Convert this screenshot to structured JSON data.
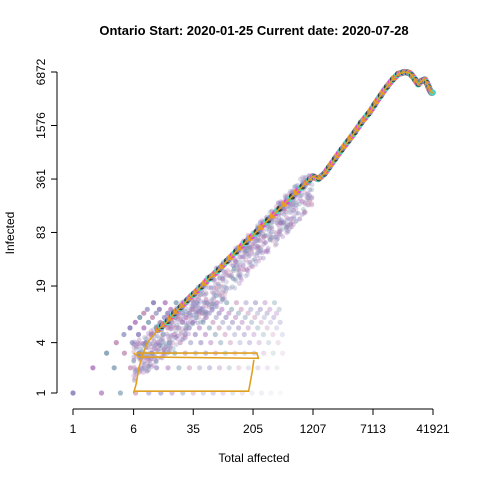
{
  "chart_data": {
    "type": "scatter",
    "title": "Ontario Start:  2020-01-25   Current date:  2020-07-28",
    "xlabel": "Total affected",
    "ylabel": "Infected",
    "x_scale": "log",
    "y_scale": "log",
    "xlim": [
      1,
      41921
    ],
    "ylim": [
      1,
      6872
    ],
    "x_ticks": [
      1,
      6,
      35,
      205,
      1207,
      7113,
      41921
    ],
    "x_tick_labels": [
      "1",
      "6",
      "35",
      "205",
      "1207",
      "7113",
      "41921"
    ],
    "y_ticks": [
      1,
      4,
      19,
      83,
      361,
      1576,
      6872
    ],
    "y_tick_labels": [
      "1",
      "4",
      "19",
      "83",
      "361",
      "1576",
      "6872"
    ],
    "grid": false,
    "legend": "none",
    "series": [
      {
        "values_note": "observed trajectory (Total affected, Infected)",
        "x": [
          6,
          6.5,
          7,
          8,
          9,
          11,
          13,
          16,
          20,
          25,
          32,
          40,
          55,
          75,
          100,
          140,
          200,
          300,
          450,
          700,
          1000,
          1207,
          1400,
          1700,
          2000,
          2500,
          3200,
          4000,
          5000,
          6500,
          8000,
          10000,
          12500,
          15000,
          18000,
          21000,
          24000,
          27000,
          30000,
          33000,
          36000,
          38000,
          40000,
          41921
        ],
        "y": [
          1,
          1.3,
          2,
          3,
          4,
          5,
          6,
          7,
          9,
          11,
          14,
          17,
          23,
          30,
          40,
          55,
          75,
          110,
          160,
          240,
          330,
          390,
          360,
          420,
          520,
          700,
          950,
          1250,
          1700,
          2300,
          3100,
          4200,
          5500,
          6500,
          6872,
          6700,
          5800,
          4900,
          5400,
          5600,
          4800,
          4200,
          3900,
          3900
        ],
        "color": "#e0a020"
      }
    ],
    "colors": [
      "#f39c12",
      "#e040e0",
      "#40e0c0",
      "#333333",
      "#8888cc"
    ]
  }
}
